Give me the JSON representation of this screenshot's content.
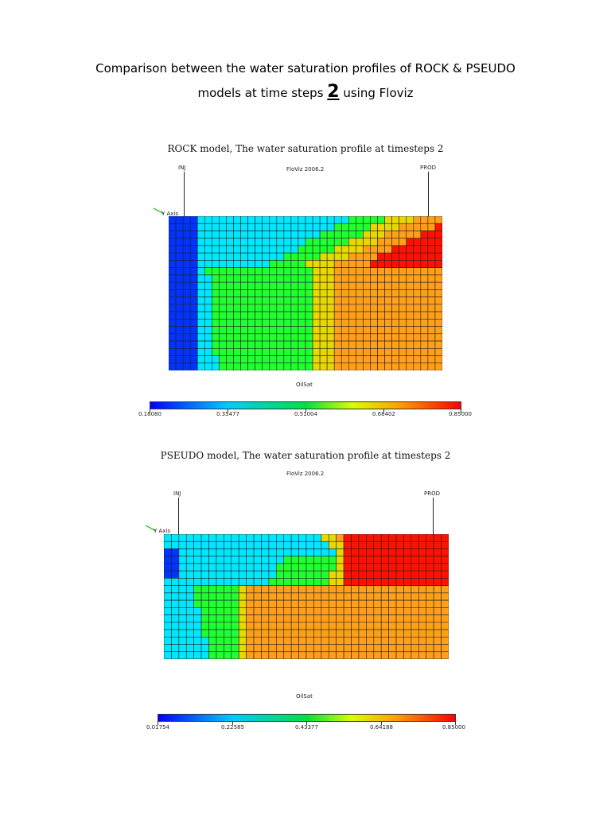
{
  "header": {
    "line1": "Comparison between the water saturation profiles of ROCK & PSEUDO",
    "line2_pre": "models at time steps ",
    "line2_num": "2",
    "line2_post": " using Floviz"
  },
  "rock": {
    "title": "ROCK model, The water saturation profile at timesteps 2",
    "software": "FloViz 2006.2",
    "inj_label": "INJ",
    "prod_label": "PROD",
    "axis_label": "Y Axis",
    "property_label": "OilSat",
    "colorbar_ticks": [
      "0.18080",
      "0.35477",
      "0.51004",
      "0.68402",
      "0.85000"
    ],
    "colormap": {
      "blue": "#0033ff",
      "cyan": "#00e8ff",
      "green": "#20ff30",
      "yellow": "#e8d800",
      "orange": "#ffa018",
      "red": "#ff1000"
    }
  },
  "pseudo": {
    "title": "PSEUDO model, The water saturation profile at timesteps 2",
    "software": "FloViz 2006.2",
    "inj_label": "INJ",
    "prod_label": "PROD",
    "axis_label": "Y Axis",
    "property_label": "OilSat",
    "colorbar_ticks": [
      "0.01754",
      "0.22585",
      "0.43377",
      "0.64188",
      "0.85000"
    ]
  }
}
